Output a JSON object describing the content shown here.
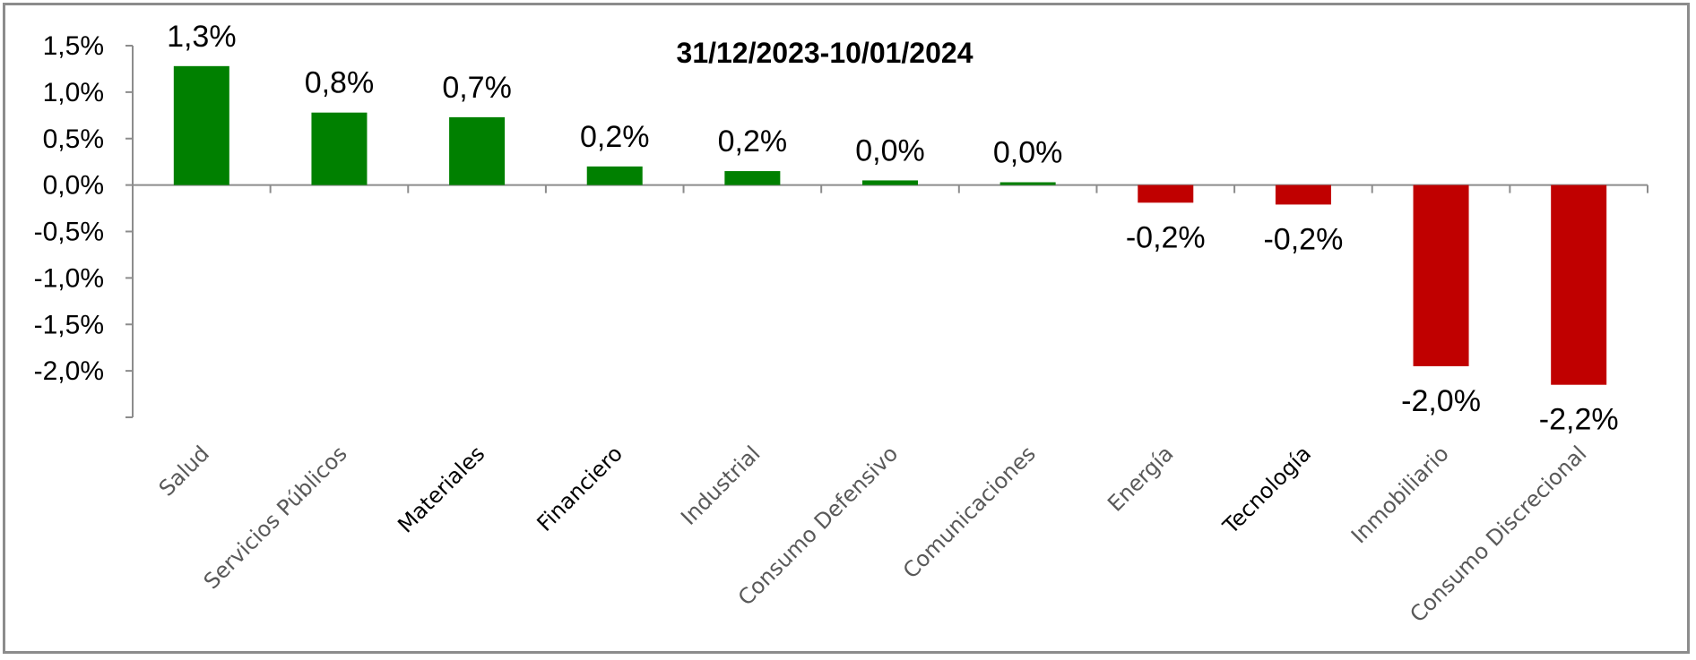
{
  "chart_data": {
    "type": "bar",
    "title": "31/12/2023-10/01/2024",
    "categories": [
      "Salud",
      "Servicios Públicos",
      "Materiales",
      "Financiero",
      "Industrial",
      "Consumo Defensivo",
      "Comunicaciones",
      "Energía",
      "Tecnología",
      "Inmobiliario",
      "Consumo Discrecional"
    ],
    "values": [
      1.28,
      0.78,
      0.73,
      0.2,
      0.15,
      0.05,
      0.03,
      -0.19,
      -0.21,
      -1.95,
      -2.15
    ],
    "data_labels": [
      "1,3%",
      "0,8%",
      "0,7%",
      "0,2%",
      "0,2%",
      "0,0%",
      "0,0%",
      "-0,2%",
      "-0,2%",
      "-2,0%",
      "-2,2%"
    ],
    "y_ticks": [
      1.5,
      1.0,
      0.5,
      0.0,
      -0.5,
      -1.0,
      -1.5,
      -2.0
    ],
    "y_tick_labels": [
      "1,5%",
      "1,0%",
      "0,5%",
      "0,0%",
      "-0,5%",
      "-1,0%",
      "-1,5%",
      "-2,0%"
    ],
    "ylim": [
      -2.5,
      1.5
    ],
    "xlabel": "",
    "ylabel": "",
    "grid": false,
    "legend": "none",
    "colors": {
      "positive": "#008000",
      "negative": "#c00000",
      "axis": "#8c8c8c"
    },
    "dark_category_labels": [
      "Materiales",
      "Financiero",
      "Tecnología"
    ]
  }
}
